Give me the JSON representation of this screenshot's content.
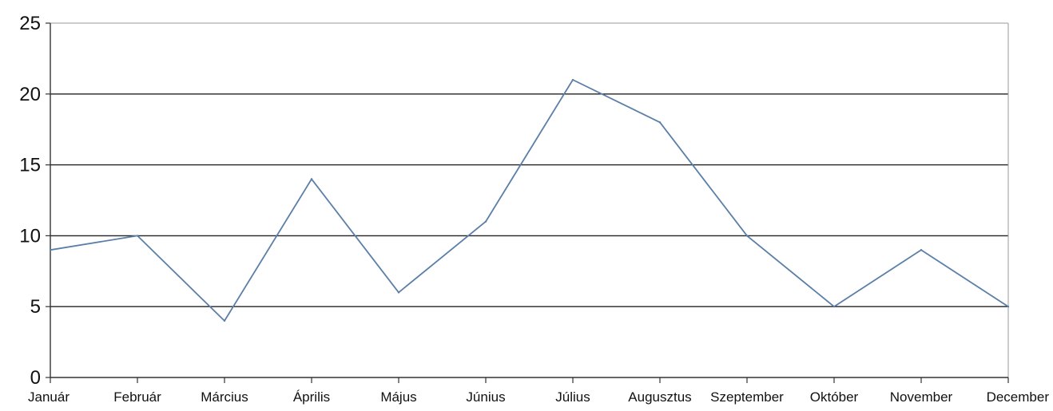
{
  "chart_data": {
    "type": "line",
    "title": "",
    "xlabel": "",
    "ylabel": "",
    "categories": [
      "Január",
      "Február",
      "Március",
      "Április",
      "Május",
      "Június",
      "Július",
      "Augusztus",
      "Szeptember",
      "Október",
      "November",
      "December"
    ],
    "series": [
      {
        "values": [
          9,
          10,
          4,
          14,
          6,
          11,
          21,
          18,
          10,
          5,
          9,
          5
        ],
        "color": "#5b7fa8"
      }
    ],
    "ylim": [
      0,
      25
    ],
    "yticks": [
      0,
      5,
      10,
      15,
      20,
      25
    ],
    "grid": true,
    "legend": "none"
  }
}
